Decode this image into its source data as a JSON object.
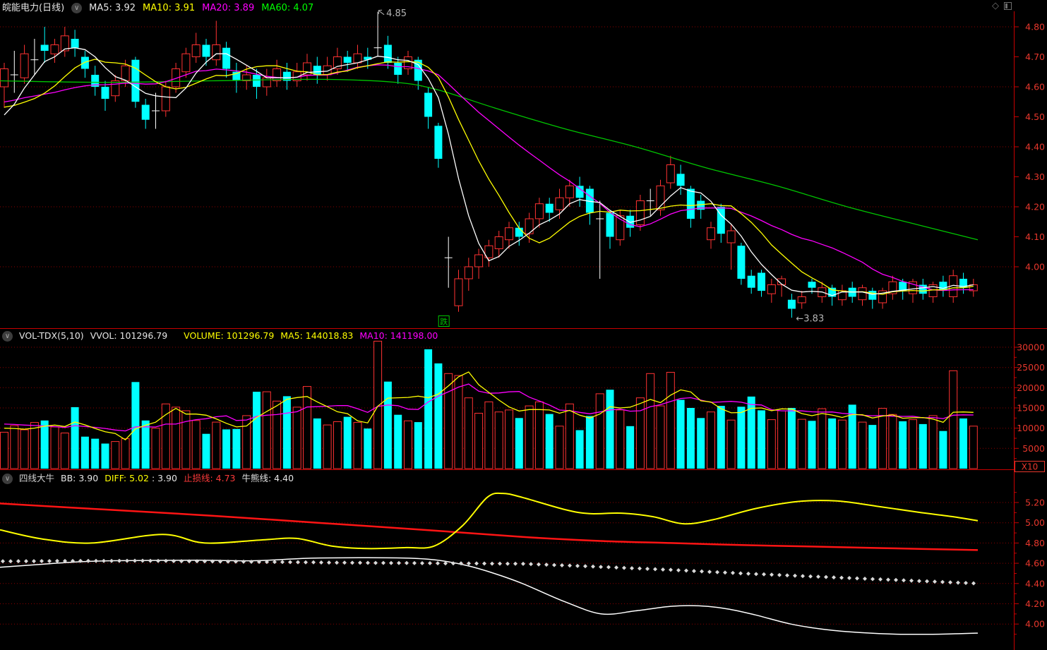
{
  "colors": {
    "background": "#000000",
    "up": "#ff3232",
    "down": "#00ffff",
    "flat": "#ffffff",
    "axis": "#c80000",
    "separator": "#c80000",
    "grid": "#8b0000",
    "axis_label": "#e8372c",
    "ma5": "#ffffff",
    "ma10": "#ffff00",
    "ma20": "#ff00ff",
    "ma60": "#00c400",
    "vol_ma5": "#ffff00",
    "vol_ma10": "#ff00ff",
    "zhisun": "#ff1414",
    "diff": "#ffff00",
    "bb": "#ffffff",
    "niuxiong": "#d9d9d9",
    "annotation": "#b4b4b4",
    "drop_badge": "#00c800"
  },
  "icons": {
    "collapse": "∨",
    "diamond": "◇",
    "panel": "panel-window"
  },
  "headers": {
    "kline": {
      "title": "皖能电力(日线)",
      "ma5": "MA5: 3.92",
      "ma10": "MA10: 3.91",
      "ma20": "MA20: 3.89",
      "ma60": "MA60: 4.07"
    },
    "volume": {
      "name": "VOL-TDX(5,10)",
      "vvol": "VVOL: 101296.79",
      "volume": "VOLUME: 101296.79",
      "ma5": "MA5: 144018.83",
      "ma10": "MA10: 141198.00"
    },
    "indicator": {
      "name": "四线大牛",
      "bb": "BB: 3.90",
      "diff": "DIFF: 5.02",
      "diff2": ": 3.90",
      "zhisun": "止损线: 4.73",
      "niuxiong": "牛熊线: 4.40"
    }
  },
  "chart_data": {
    "type": "candlestick-multi-pane",
    "kline": {
      "y_ticks": [
        "4.80",
        "4.70",
        "4.60",
        "4.50",
        "4.40",
        "4.30",
        "4.20",
        "4.10",
        "4.00"
      ],
      "grid_ticks": [
        4.8,
        4.6,
        4.4,
        4.2,
        4.0
      ],
      "candles": [
        [
          4.6,
          4.66,
          4.53,
          4.68
        ],
        [
          4.64,
          4.64,
          4.58,
          4.72
        ],
        [
          4.63,
          4.71,
          4.61,
          4.74
        ],
        [
          4.69,
          4.69,
          4.64,
          4.76
        ],
        [
          4.74,
          4.72,
          4.68,
          4.8
        ],
        [
          4.71,
          4.74,
          4.68,
          4.76
        ],
        [
          4.72,
          4.77,
          4.7,
          4.8
        ],
        [
          4.76,
          4.73,
          4.7,
          4.79
        ],
        [
          4.7,
          4.66,
          4.63,
          4.72
        ],
        [
          4.64,
          4.6,
          4.57,
          4.67
        ],
        [
          4.6,
          4.56,
          4.52,
          4.62
        ],
        [
          4.57,
          4.62,
          4.55,
          4.64
        ],
        [
          4.62,
          4.67,
          4.6,
          4.69
        ],
        [
          4.69,
          4.55,
          4.53,
          4.7
        ],
        [
          4.54,
          4.49,
          4.46,
          4.56
        ],
        [
          4.52,
          4.52,
          4.46,
          4.58
        ],
        [
          4.52,
          4.6,
          4.5,
          4.62
        ],
        [
          4.6,
          4.66,
          4.58,
          4.68
        ],
        [
          4.65,
          4.71,
          4.63,
          4.73
        ],
        [
          4.7,
          4.74,
          4.68,
          4.78
        ],
        [
          4.74,
          4.7,
          4.67,
          4.76
        ],
        [
          4.69,
          4.74,
          4.67,
          4.82
        ],
        [
          4.73,
          4.66,
          4.63,
          4.75
        ],
        [
          4.65,
          4.62,
          4.58,
          4.68
        ],
        [
          4.62,
          4.64,
          4.59,
          4.67
        ],
        [
          4.64,
          4.6,
          4.56,
          4.66
        ],
        [
          4.6,
          4.63,
          4.57,
          4.66
        ],
        [
          4.62,
          4.66,
          4.6,
          4.69
        ],
        [
          4.65,
          4.62,
          4.59,
          4.68
        ],
        [
          4.62,
          4.65,
          4.6,
          4.68
        ],
        [
          4.64,
          4.68,
          4.62,
          4.71
        ],
        [
          4.67,
          4.64,
          4.61,
          4.7
        ],
        [
          4.64,
          4.67,
          4.62,
          4.7
        ],
        [
          4.66,
          4.7,
          4.64,
          4.73
        ],
        [
          4.7,
          4.68,
          4.65,
          4.72
        ],
        [
          4.68,
          4.71,
          4.66,
          4.74
        ],
        [
          4.7,
          4.69,
          4.66,
          4.73
        ],
        [
          4.73,
          4.73,
          4.7,
          4.85
        ],
        [
          4.74,
          4.68,
          4.66,
          4.77
        ],
        [
          4.68,
          4.64,
          4.61,
          4.7
        ],
        [
          4.66,
          4.7,
          4.64,
          4.72
        ],
        [
          4.69,
          4.62,
          4.59,
          4.7
        ],
        [
          4.58,
          4.5,
          4.46,
          4.6
        ],
        [
          4.47,
          4.36,
          4.33,
          4.48
        ],
        [
          4.03,
          4.03,
          3.93,
          4.1
        ],
        [
          3.87,
          3.96,
          3.85,
          3.99
        ],
        [
          3.96,
          4.0,
          3.92,
          4.03
        ],
        [
          4.0,
          4.04,
          3.96,
          4.06
        ],
        [
          4.03,
          4.07,
          4.0,
          4.09
        ],
        [
          4.06,
          4.1,
          4.03,
          4.12
        ],
        [
          4.09,
          4.13,
          4.06,
          4.15
        ],
        [
          4.13,
          4.1,
          4.07,
          4.15
        ],
        [
          4.11,
          4.16,
          4.08,
          4.18
        ],
        [
          4.16,
          4.21,
          4.13,
          4.23
        ],
        [
          4.21,
          4.18,
          4.15,
          4.23
        ],
        [
          4.19,
          4.23,
          4.16,
          4.26
        ],
        [
          4.23,
          4.27,
          4.2,
          4.29
        ],
        [
          4.27,
          4.23,
          4.2,
          4.3
        ],
        [
          4.26,
          4.18,
          4.14,
          4.27
        ],
        [
          4.16,
          4.16,
          3.96,
          4.22
        ],
        [
          4.18,
          4.1,
          4.06,
          4.19
        ],
        [
          4.09,
          4.17,
          4.07,
          4.19
        ],
        [
          4.17,
          4.13,
          4.1,
          4.19
        ],
        [
          4.14,
          4.22,
          4.12,
          4.24
        ],
        [
          4.22,
          4.22,
          4.17,
          4.26
        ],
        [
          4.19,
          4.27,
          4.17,
          4.29
        ],
        [
          4.28,
          4.34,
          4.26,
          4.37
        ],
        [
          4.31,
          4.27,
          4.24,
          4.34
        ],
        [
          4.26,
          4.16,
          4.13,
          4.27
        ],
        [
          4.22,
          4.19,
          4.16,
          4.24
        ],
        [
          4.09,
          4.13,
          4.06,
          4.15
        ],
        [
          4.2,
          4.11,
          4.08,
          4.21
        ],
        [
          4.08,
          4.12,
          3.99,
          4.14
        ],
        [
          4.07,
          3.96,
          3.94,
          4.08
        ],
        [
          3.97,
          3.93,
          3.91,
          3.99
        ],
        [
          3.98,
          3.92,
          3.9,
          3.99
        ],
        [
          3.91,
          3.94,
          3.88,
          3.96
        ],
        [
          3.94,
          3.96,
          3.9,
          3.97
        ],
        [
          3.89,
          3.86,
          3.83,
          3.91
        ],
        [
          3.88,
          3.9,
          3.86,
          3.92
        ],
        [
          3.95,
          3.93,
          3.91,
          3.96
        ],
        [
          3.9,
          3.93,
          3.88,
          3.95
        ],
        [
          3.93,
          3.9,
          3.87,
          3.94
        ],
        [
          3.89,
          3.92,
          3.87,
          3.94
        ],
        [
          3.93,
          3.9,
          3.88,
          3.95
        ],
        [
          3.89,
          3.93,
          3.87,
          3.94
        ],
        [
          3.92,
          3.89,
          3.86,
          3.93
        ],
        [
          3.88,
          3.92,
          3.86,
          3.93
        ],
        [
          3.91,
          3.95,
          3.89,
          3.97
        ],
        [
          3.95,
          3.92,
          3.89,
          3.96
        ],
        [
          3.91,
          3.95,
          3.88,
          3.96
        ],
        [
          3.94,
          3.91,
          3.89,
          3.96
        ],
        [
          3.9,
          3.94,
          3.88,
          3.95
        ],
        [
          3.95,
          3.92,
          3.9,
          3.97
        ],
        [
          3.9,
          3.97,
          3.88,
          3.99
        ],
        [
          3.96,
          3.93,
          3.91,
          3.98
        ],
        [
          3.92,
          3.94,
          3.9,
          3.96
        ]
      ],
      "ma_periods": [
        5,
        10,
        20
      ],
      "ma_history": [
        4.5,
        4.52,
        4.55,
        4.57,
        4.6,
        4.62,
        4.6,
        4.58,
        4.55,
        4.53,
        4.55,
        4.58,
        4.6,
        4.57,
        4.54,
        4.5,
        4.46,
        4.44,
        4.47,
        4.5
      ],
      "ma60_keypoints": [
        [
          0,
          4.62
        ],
        [
          150,
          4.615
        ],
        [
          300,
          4.62
        ],
        [
          450,
          4.625
        ],
        [
          560,
          4.615
        ],
        [
          620,
          4.59
        ],
        [
          700,
          4.53
        ],
        [
          800,
          4.46
        ],
        [
          900,
          4.4
        ],
        [
          1000,
          4.33
        ],
        [
          1100,
          4.27
        ],
        [
          1200,
          4.2
        ],
        [
          1300,
          4.14
        ],
        [
          1385,
          4.09
        ]
      ],
      "annotations": {
        "high": {
          "index": 37,
          "price": 4.85,
          "text": "4.85"
        },
        "low": {
          "index": 78,
          "price": 3.83,
          "text": "←3.83"
        },
        "drop": {
          "index": 44,
          "text": "跌"
        }
      }
    },
    "volume": {
      "y_ticks": [
        "30000",
        "25000",
        "20000",
        "15000",
        "10000",
        "5000"
      ],
      "unit": "X10",
      "bars": [
        9000,
        10600,
        9600,
        11400,
        11900,
        10300,
        8800,
        15200,
        7900,
        7400,
        6200,
        6700,
        7400,
        21400,
        11900,
        10000,
        16000,
        15200,
        14300,
        11900,
        8600,
        11500,
        9700,
        9800,
        13100,
        19000,
        19000,
        16700,
        17900,
        15200,
        20300,
        12400,
        10800,
        11600,
        12800,
        11400,
        9900,
        31500,
        21500,
        13300,
        11800,
        11500,
        29500,
        26000,
        23500,
        23000,
        17500,
        13700,
        16500,
        14000,
        14500,
        12500,
        15500,
        16500,
        13500,
        10500,
        16000,
        9500,
        13000,
        18500,
        19500,
        14500,
        10500,
        17500,
        23500,
        15500,
        23800,
        17000,
        15000,
        12500,
        14000,
        15500,
        12000,
        15300,
        17800,
        14400,
        12100,
        14300,
        15000,
        12200,
        11800,
        14800,
        12400,
        12000,
        15800,
        11500,
        10800,
        14900,
        13400,
        11700,
        12100,
        11000,
        13100,
        9300,
        24200,
        12400,
        10500
      ],
      "ma_periods": [
        5,
        10
      ],
      "ma_history": [
        12000,
        11500,
        11000,
        12500,
        13000,
        12000,
        11000,
        10500,
        10000,
        9500
      ]
    },
    "indicator": {
      "y_ticks": [
        "5.20",
        "5.00",
        "4.80",
        "4.60",
        "4.40",
        "4.20",
        "4.00"
      ],
      "lines": {
        "zhisun": [
          [
            0,
            5.19
          ],
          [
            150,
            5.13
          ],
          [
            300,
            5.07
          ],
          [
            450,
            5.0
          ],
          [
            600,
            4.93
          ],
          [
            740,
            4.86
          ],
          [
            850,
            4.82
          ],
          [
            950,
            4.8
          ],
          [
            1050,
            4.78
          ],
          [
            1150,
            4.765
          ],
          [
            1250,
            4.75
          ],
          [
            1385,
            4.73
          ]
        ],
        "diff": [
          [
            0,
            4.93
          ],
          [
            60,
            4.84
          ],
          [
            130,
            4.8
          ],
          [
            230,
            4.885
          ],
          [
            290,
            4.8
          ],
          [
            370,
            4.83
          ],
          [
            420,
            4.845
          ],
          [
            470,
            4.77
          ],
          [
            520,
            4.745
          ],
          [
            575,
            4.755
          ],
          [
            615,
            4.77
          ],
          [
            655,
            4.97
          ],
          [
            690,
            5.25
          ],
          [
            712,
            5.29
          ],
          [
            740,
            5.25
          ],
          [
            800,
            5.13
          ],
          [
            835,
            5.09
          ],
          [
            880,
            5.095
          ],
          [
            925,
            5.06
          ],
          [
            968,
            4.99
          ],
          [
            1010,
            5.03
          ],
          [
            1070,
            5.14
          ],
          [
            1130,
            5.21
          ],
          [
            1185,
            5.215
          ],
          [
            1245,
            5.16
          ],
          [
            1305,
            5.1
          ],
          [
            1350,
            5.06
          ],
          [
            1385,
            5.02
          ]
        ],
        "bb": [
          [
            0,
            4.56
          ],
          [
            60,
            4.59
          ],
          [
            100,
            4.61
          ],
          [
            160,
            4.625
          ],
          [
            280,
            4.63
          ],
          [
            360,
            4.625
          ],
          [
            440,
            4.65
          ],
          [
            520,
            4.655
          ],
          [
            580,
            4.65
          ],
          [
            620,
            4.63
          ],
          [
            660,
            4.58
          ],
          [
            700,
            4.5
          ],
          [
            740,
            4.4
          ],
          [
            800,
            4.22
          ],
          [
            852,
            4.1
          ],
          [
            900,
            4.13
          ],
          [
            950,
            4.175
          ],
          [
            990,
            4.18
          ],
          [
            1030,
            4.15
          ],
          [
            1070,
            4.09
          ],
          [
            1120,
            4.0
          ],
          [
            1170,
            3.945
          ],
          [
            1220,
            3.915
          ],
          [
            1270,
            3.9
          ],
          [
            1330,
            3.9
          ],
          [
            1385,
            3.91
          ]
        ],
        "niuxiong": [
          [
            0,
            4.62
          ],
          [
            200,
            4.625
          ],
          [
            350,
            4.615
          ],
          [
            500,
            4.605
          ],
          [
            620,
            4.6
          ],
          [
            740,
            4.595
          ],
          [
            850,
            4.565
          ],
          [
            950,
            4.535
          ],
          [
            1050,
            4.5
          ],
          [
            1150,
            4.47
          ],
          [
            1250,
            4.44
          ],
          [
            1320,
            4.42
          ],
          [
            1385,
            4.4
          ]
        ]
      }
    }
  }
}
